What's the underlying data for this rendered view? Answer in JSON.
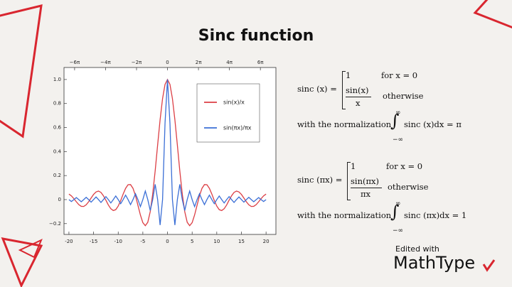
{
  "slide": {
    "title": "Sinc function",
    "edited_with": "Edited with",
    "brand": "MathType"
  },
  "chart_data": {
    "type": "line",
    "x": [
      -20,
      -19.5,
      -19,
      -18.5,
      -18,
      -17.5,
      -17,
      -16.5,
      -16,
      -15.5,
      -15,
      -14.5,
      -14,
      -13.5,
      -13,
      -12.5,
      -12,
      -11.5,
      -11,
      -10.5,
      -10,
      -9.5,
      -9,
      -8.5,
      -8,
      -7.5,
      -7,
      -6.5,
      -6,
      -5.5,
      -5,
      -4.5,
      -4,
      -3.5,
      -3,
      -2.5,
      -2,
      -1.5,
      -1,
      -0.5,
      0,
      0.5,
      1,
      1.5,
      2,
      2.5,
      3,
      3.5,
      4,
      4.5,
      5,
      5.5,
      6,
      6.5,
      7,
      7.5,
      8,
      8.5,
      9,
      9.5,
      10,
      10.5,
      11,
      11.5,
      12,
      12.5,
      13,
      13.5,
      14,
      14.5,
      15,
      15.5,
      16,
      16.5,
      17,
      17.5,
      18,
      18.5,
      19,
      19.5,
      20
    ],
    "series": [
      {
        "name": "sin(x)/x",
        "color": "#dc3f45",
        "values": [
          0.046,
          0.031,
          0.008,
          -0.018,
          -0.042,
          -0.056,
          -0.057,
          -0.043,
          -0.018,
          0.013,
          0.043,
          0.064,
          0.071,
          0.06,
          0.032,
          -0.005,
          -0.045,
          -0.076,
          -0.091,
          -0.084,
          -0.054,
          -0.008,
          0.046,
          0.094,
          0.124,
          0.125,
          0.094,
          0.033,
          -0.047,
          -0.128,
          -0.192,
          -0.217,
          -0.189,
          -0.1,
          0.047,
          0.239,
          0.455,
          0.665,
          0.841,
          0.959,
          1,
          0.959,
          0.841,
          0.665,
          0.455,
          0.239,
          0.047,
          -0.1,
          -0.189,
          -0.217,
          -0.192,
          -0.128,
          -0.047,
          0.033,
          0.094,
          0.125,
          0.124,
          0.094,
          0.046,
          -0.008,
          -0.054,
          -0.084,
          -0.091,
          -0.076,
          -0.045,
          -0.005,
          0.032,
          0.06,
          0.071,
          0.064,
          0.043,
          0.013,
          -0.018,
          -0.043,
          -0.057,
          -0.056,
          -0.042,
          -0.018,
          0.008,
          0.031,
          0.046
        ]
      },
      {
        "name": "sin(πx)/πx",
        "color": "#3b6fd6",
        "values": [
          0,
          -0.016,
          0,
          0.017,
          0,
          -0.018,
          0,
          0.019,
          0,
          -0.021,
          0,
          0.022,
          0,
          -0.024,
          0,
          0.025,
          0,
          -0.028,
          0,
          0.03,
          0,
          -0.034,
          0,
          0.037,
          0,
          -0.042,
          0,
          0.049,
          0,
          -0.058,
          0,
          0.071,
          0,
          -0.091,
          0,
          0.127,
          0,
          -0.212,
          0,
          0.637,
          1,
          0.637,
          0,
          -0.212,
          0,
          0.127,
          0,
          -0.091,
          0,
          0.071,
          0,
          -0.058,
          0,
          0.049,
          0,
          -0.042,
          0,
          0.037,
          0,
          -0.034,
          0,
          0.03,
          0,
          -0.028,
          0,
          0.025,
          0,
          -0.024,
          0,
          0.022,
          0,
          -0.021,
          0,
          0.019,
          0,
          -0.018,
          0,
          0.017,
          0,
          -0.016,
          0
        ]
      }
    ],
    "xlim": [
      -21,
      22
    ],
    "xticks": [
      -20,
      -15,
      -10,
      -5,
      0,
      5,
      10,
      15,
      20
    ],
    "x2lim": [
      -21,
      22
    ],
    "x2ticks": [
      {
        "value": -18.85,
        "label": "−6π"
      },
      {
        "value": -12.566,
        "label": "−4π"
      },
      {
        "value": -6.283,
        "label": "−2π"
      },
      0,
      {
        "value": 6.283,
        "label": "2π"
      },
      {
        "value": 12.566,
        "label": "4π"
      },
      {
        "value": 18.85,
        "label": "6π"
      }
    ],
    "ylim": [
      -0.29,
      1.1
    ],
    "yticks": [
      {
        "value": -0.2,
        "label": "−0.2"
      },
      0,
      0.2,
      0.4,
      0.6,
      0.8,
      {
        "value": 1,
        "label": "1.0"
      }
    ],
    "legend": "upper right",
    "grid": false
  },
  "formulas": [
    {
      "lhs": "sinc (x) =",
      "case1": "1",
      "cond1": "for x = 0",
      "num": "sin(x)",
      "den": "x",
      "cond2": "otherwise",
      "norm": "with the normalization",
      "integral": "∫",
      "upper": "∞",
      "lower": "−∞",
      "integrand": "sinc (x)dx = π"
    },
    {
      "lhs": "sinc (πx) =",
      "case1": "1",
      "cond1": "for x = 0",
      "num": "sin(πx)",
      "den": "πx",
      "cond2": "otherwise",
      "norm": "with the normalization",
      "integral": "∫",
      "upper": "∞",
      "lower": "−∞",
      "integrand": "sinc (πx)dx = 1"
    }
  ]
}
